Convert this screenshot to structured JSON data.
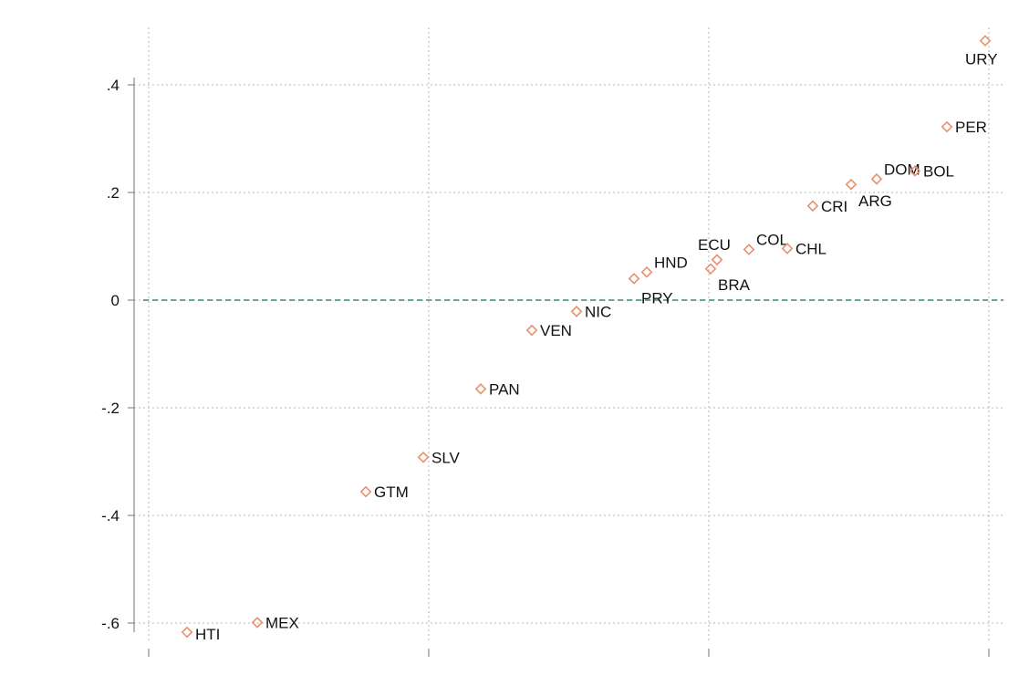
{
  "chart_data": {
    "type": "scatter",
    "title": "",
    "xlabel": "",
    "ylabel": "",
    "ylim": [
      -0.6,
      0.5
    ],
    "yticks": [
      {
        "value": -0.6,
        "label": "-.6"
      },
      {
        "value": -0.4,
        "label": "-.4"
      },
      {
        "value": -0.2,
        "label": "-.2"
      },
      {
        "value": 0,
        "label": "0"
      },
      {
        "value": 0.2,
        "label": ".2"
      },
      {
        "value": 0.4,
        "label": ".4"
      }
    ],
    "xticks_count": 4,
    "grid": true,
    "reference_line": {
      "y": 0,
      "color": "#2e8b7a",
      "style": "dashed"
    },
    "marker": {
      "shape": "diamond-hollow",
      "color": "#e8916c"
    },
    "points": [
      {
        "label": "HTI",
        "x": 0.03,
        "y": -0.617,
        "label_pos": "right-low"
      },
      {
        "label": "MEX",
        "x": 0.085,
        "y": -0.599,
        "label_pos": "right"
      },
      {
        "label": "GTM",
        "x": 0.17,
        "y": -0.356,
        "label_pos": "right"
      },
      {
        "label": "SLV",
        "x": 0.215,
        "y": -0.292,
        "label_pos": "right"
      },
      {
        "label": "PAN",
        "x": 0.26,
        "y": -0.165,
        "label_pos": "right"
      },
      {
        "label": "VEN",
        "x": 0.3,
        "y": -0.056,
        "label_pos": "right"
      },
      {
        "label": "NIC",
        "x": 0.335,
        "y": -0.021,
        "label_pos": "right"
      },
      {
        "label": "PRY",
        "x": 0.38,
        "y": 0.04,
        "label_pos": "below"
      },
      {
        "label": "HND",
        "x": 0.39,
        "y": 0.052,
        "label_pos": "above-right"
      },
      {
        "label": "BRA",
        "x": 0.44,
        "y": 0.058,
        "label_pos": "below"
      },
      {
        "label": "ECU",
        "x": 0.445,
        "y": 0.075,
        "label_pos": "above"
      },
      {
        "label": "COL",
        "x": 0.47,
        "y": 0.094,
        "label_pos": "above-right"
      },
      {
        "label": "CHL",
        "x": 0.5,
        "y": 0.096,
        "label_pos": "right"
      },
      {
        "label": "CRI",
        "x": 0.52,
        "y": 0.175,
        "label_pos": "right"
      },
      {
        "label": "ARG",
        "x": 0.55,
        "y": 0.215,
        "label_pos": "below"
      },
      {
        "label": "DOM",
        "x": 0.57,
        "y": 0.225,
        "label_pos": "above-right"
      },
      {
        "label": "BOL",
        "x": 0.6,
        "y": 0.24,
        "label_pos": "right"
      },
      {
        "label": "PER",
        "x": 0.625,
        "y": 0.322,
        "label_pos": "right"
      },
      {
        "label": "URY",
        "x": 0.655,
        "y": 0.482,
        "label_pos": "below"
      }
    ]
  }
}
